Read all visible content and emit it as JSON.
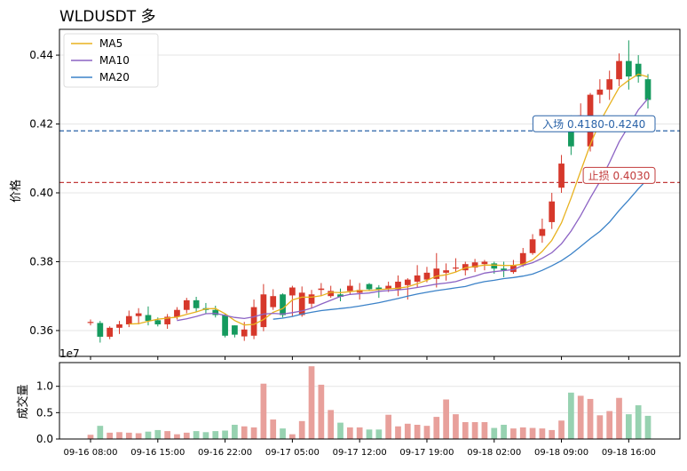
{
  "title": "WLDUSDT  多",
  "colors": {
    "up": "#d6382b",
    "down": "#159a5e",
    "vol_up": "#e8a09b",
    "vol_down": "#97d2b1",
    "ma5": "#e8b21f",
    "ma10": "#8c63c4",
    "ma20": "#3b82c8",
    "entry": "#2a63a8",
    "stop": "#c23b3b"
  },
  "chart_data": [
    {
      "type": "candlestick",
      "ylabel": "价格",
      "ylim": [
        0.3525,
        0.4475
      ],
      "yticks": [
        "0.36",
        "0.38",
        "0.40",
        "0.42",
        "0.44"
      ],
      "ytick_values": [
        0.36,
        0.38,
        0.4,
        0.42,
        0.44
      ],
      "legend": {
        "position": "top-left",
        "entries": [
          "MA5",
          "MA10",
          "MA20"
        ]
      },
      "x": [
        "09-16 08:00",
        "09-16 09:00",
        "09-16 10:00",
        "09-16 11:00",
        "09-16 12:00",
        "09-16 13:00",
        "09-16 14:00",
        "09-16 15:00",
        "09-16 16:00",
        "09-16 17:00",
        "09-16 18:00",
        "09-16 19:00",
        "09-16 20:00",
        "09-16 21:00",
        "09-16 22:00",
        "09-16 23:00",
        "09-17 00:00",
        "09-17 01:00",
        "09-17 02:00",
        "09-17 03:00",
        "09-17 04:00",
        "09-17 05:00",
        "09-17 06:00",
        "09-17 07:00",
        "09-17 08:00",
        "09-17 09:00",
        "09-17 10:00",
        "09-17 11:00",
        "09-17 12:00",
        "09-17 13:00",
        "09-17 14:00",
        "09-17 15:00",
        "09-17 16:00",
        "09-17 17:00",
        "09-17 18:00",
        "09-17 19:00",
        "09-17 20:00",
        "09-17 21:00",
        "09-17 22:00",
        "09-17 23:00",
        "09-18 00:00",
        "09-18 01:00",
        "09-18 02:00",
        "09-18 03:00",
        "09-18 04:00",
        "09-18 05:00",
        "09-18 06:00",
        "09-18 07:00",
        "09-18 08:00",
        "09-18 09:00",
        "09-18 10:00",
        "09-18 11:00",
        "09-18 12:00",
        "09-18 13:00",
        "09-18 14:00",
        "09-18 15:00",
        "09-18 16:00",
        "09-18 17:00",
        "09-18 18:00"
      ],
      "open": [
        0.3625,
        0.3622,
        0.3582,
        0.3608,
        0.3618,
        0.3642,
        0.3645,
        0.363,
        0.3618,
        0.364,
        0.366,
        0.3688,
        0.3665,
        0.366,
        0.3645,
        0.3615,
        0.3583,
        0.3585,
        0.361,
        0.3668,
        0.3705,
        0.3702,
        0.3645,
        0.3678,
        0.3718,
        0.37,
        0.3705,
        0.3715,
        0.371,
        0.3735,
        0.3725,
        0.372,
        0.372,
        0.3732,
        0.3742,
        0.3748,
        0.375,
        0.3768,
        0.378,
        0.3775,
        0.3783,
        0.3793,
        0.3795,
        0.378,
        0.377,
        0.379,
        0.3825,
        0.3875,
        0.3915,
        0.4015,
        0.42,
        0.4205,
        0.4135,
        0.4285,
        0.43,
        0.433,
        0.4383,
        0.4375,
        0.433
      ],
      "close": [
        0.3625,
        0.3582,
        0.3608,
        0.3618,
        0.3642,
        0.365,
        0.3628,
        0.3618,
        0.364,
        0.366,
        0.3688,
        0.3665,
        0.366,
        0.3645,
        0.3585,
        0.3588,
        0.3603,
        0.3668,
        0.3705,
        0.37,
        0.3645,
        0.3725,
        0.371,
        0.3705,
        0.3722,
        0.3715,
        0.3698,
        0.373,
        0.3718,
        0.372,
        0.372,
        0.373,
        0.3742,
        0.3748,
        0.376,
        0.3768,
        0.378,
        0.3775,
        0.3783,
        0.3793,
        0.3798,
        0.38,
        0.378,
        0.3775,
        0.379,
        0.3825,
        0.3865,
        0.3895,
        0.3975,
        0.4085,
        0.4135,
        0.4225,
        0.4285,
        0.43,
        0.433,
        0.4383,
        0.4338,
        0.4338,
        0.427
      ],
      "high": [
        0.3632,
        0.3628,
        0.3612,
        0.3628,
        0.3658,
        0.3665,
        0.367,
        0.3638,
        0.3648,
        0.3668,
        0.3695,
        0.3698,
        0.368,
        0.3672,
        0.365,
        0.3615,
        0.3625,
        0.369,
        0.3735,
        0.372,
        0.3708,
        0.373,
        0.3728,
        0.3718,
        0.3738,
        0.373,
        0.3722,
        0.3748,
        0.3738,
        0.3738,
        0.3732,
        0.3742,
        0.376,
        0.3752,
        0.379,
        0.3785,
        0.3825,
        0.3795,
        0.381,
        0.38,
        0.3808,
        0.3805,
        0.38,
        0.38,
        0.3805,
        0.384,
        0.388,
        0.3925,
        0.4,
        0.411,
        0.4225,
        0.426,
        0.429,
        0.433,
        0.4355,
        0.4405,
        0.4443,
        0.44,
        0.4345
      ],
      "low": [
        0.3615,
        0.3565,
        0.3575,
        0.359,
        0.361,
        0.3618,
        0.3615,
        0.3612,
        0.3605,
        0.3632,
        0.365,
        0.3655,
        0.3648,
        0.3638,
        0.358,
        0.358,
        0.357,
        0.3575,
        0.3598,
        0.366,
        0.3638,
        0.364,
        0.364,
        0.3665,
        0.37,
        0.3695,
        0.3685,
        0.3705,
        0.369,
        0.3715,
        0.3695,
        0.3712,
        0.37,
        0.369,
        0.3725,
        0.374,
        0.3725,
        0.3745,
        0.377,
        0.376,
        0.377,
        0.3775,
        0.3765,
        0.3755,
        0.3765,
        0.3785,
        0.382,
        0.3855,
        0.3895,
        0.4,
        0.411,
        0.4185,
        0.412,
        0.426,
        0.427,
        0.431,
        0.43,
        0.432,
        0.4245
      ],
      "ma5": [
        null,
        null,
        null,
        null,
        0.3619,
        0.362,
        0.3627,
        0.3633,
        0.3636,
        0.3639,
        0.3647,
        0.3654,
        0.3663,
        0.3664,
        0.3649,
        0.3629,
        0.3616,
        0.3618,
        0.3632,
        0.3653,
        0.3664,
        0.3689,
        0.3697,
        0.3697,
        0.3701,
        0.3711,
        0.371,
        0.3713,
        0.3716,
        0.3716,
        0.3719,
        0.3721,
        0.3723,
        0.3727,
        0.3736,
        0.3746,
        0.3758,
        0.3762,
        0.377,
        0.3782,
        0.3786,
        0.379,
        0.379,
        0.3789,
        0.3789,
        0.3793,
        0.3805,
        0.383,
        0.3862,
        0.3913,
        0.3985,
        0.4063,
        0.414,
        0.4206,
        0.4256,
        0.4306,
        0.4327,
        0.4345,
        0.4337
      ],
      "ma10": [
        null,
        null,
        null,
        null,
        null,
        null,
        null,
        null,
        null,
        0.3629,
        0.3634,
        0.3641,
        0.3649,
        0.365,
        0.3644,
        0.3638,
        0.3635,
        0.364,
        0.3648,
        0.365,
        0.3648,
        0.3652,
        0.3657,
        0.3665,
        0.3677,
        0.3688,
        0.3699,
        0.3705,
        0.3707,
        0.3709,
        0.3714,
        0.3716,
        0.3718,
        0.3721,
        0.3725,
        0.373,
        0.3735,
        0.3738,
        0.3742,
        0.3751,
        0.3758,
        0.3767,
        0.3771,
        0.3774,
        0.3777,
        0.3789,
        0.3797,
        0.381,
        0.3826,
        0.3852,
        0.3889,
        0.3934,
        0.3985,
        0.4033,
        0.4088,
        0.4148,
        0.4194,
        0.4241,
        0.4274
      ],
      "ma20": [
        null,
        null,
        null,
        null,
        null,
        null,
        null,
        null,
        null,
        null,
        null,
        null,
        null,
        null,
        null,
        null,
        null,
        null,
        null,
        0.3633,
        0.3636,
        0.3641,
        0.3648,
        0.3653,
        0.3658,
        0.3661,
        0.3664,
        0.3667,
        0.3671,
        0.3676,
        0.3681,
        0.3687,
        0.3693,
        0.37,
        0.3706,
        0.3711,
        0.3716,
        0.372,
        0.3724,
        0.3728,
        0.3736,
        0.3742,
        0.3746,
        0.3751,
        0.3754,
        0.3758,
        0.3764,
        0.3775,
        0.3788,
        0.3803,
        0.3822,
        0.3844,
        0.3867,
        0.3888,
        0.3915,
        0.3949,
        0.3979,
        0.4012,
        0.4041
      ],
      "annotations": [
        {
          "label": "入场 0.4180-0.4240",
          "y": 0.418,
          "style": "dashed",
          "color_key": "entry"
        },
        {
          "label": "止损 0.4030",
          "y": 0.403,
          "style": "dashed",
          "color_key": "stop"
        }
      ],
      "offset_label": "1e7"
    },
    {
      "type": "bar",
      "ylabel": "成交量",
      "ylim": [
        0,
        1.45
      ],
      "yticks": [
        "0.0",
        "0.5",
        "1.0"
      ],
      "ytick_values": [
        0,
        0.5,
        1.0
      ],
      "values": [
        0.08,
        0.25,
        0.12,
        0.13,
        0.12,
        0.11,
        0.14,
        0.17,
        0.15,
        0.09,
        0.12,
        0.15,
        0.13,
        0.15,
        0.16,
        0.27,
        0.24,
        0.22,
        1.05,
        0.37,
        0.2,
        0.09,
        0.34,
        1.38,
        1.03,
        0.55,
        0.31,
        0.22,
        0.22,
        0.18,
        0.18,
        0.46,
        0.24,
        0.29,
        0.27,
        0.25,
        0.42,
        0.75,
        0.47,
        0.32,
        0.32,
        0.32,
        0.21,
        0.27,
        0.2,
        0.22,
        0.21,
        0.2,
        0.17,
        0.35,
        0.88,
        0.82,
        0.76,
        0.45,
        0.53,
        0.78,
        0.47,
        0.64,
        0.44
      ],
      "xtick_labels": [
        "09-16 08:00",
        "09-16 15:00",
        "09-16 22:00",
        "09-17 05:00",
        "09-17 12:00",
        "09-17 19:00",
        "09-18 02:00",
        "09-18 09:00",
        "09-18 16:00"
      ]
    }
  ]
}
